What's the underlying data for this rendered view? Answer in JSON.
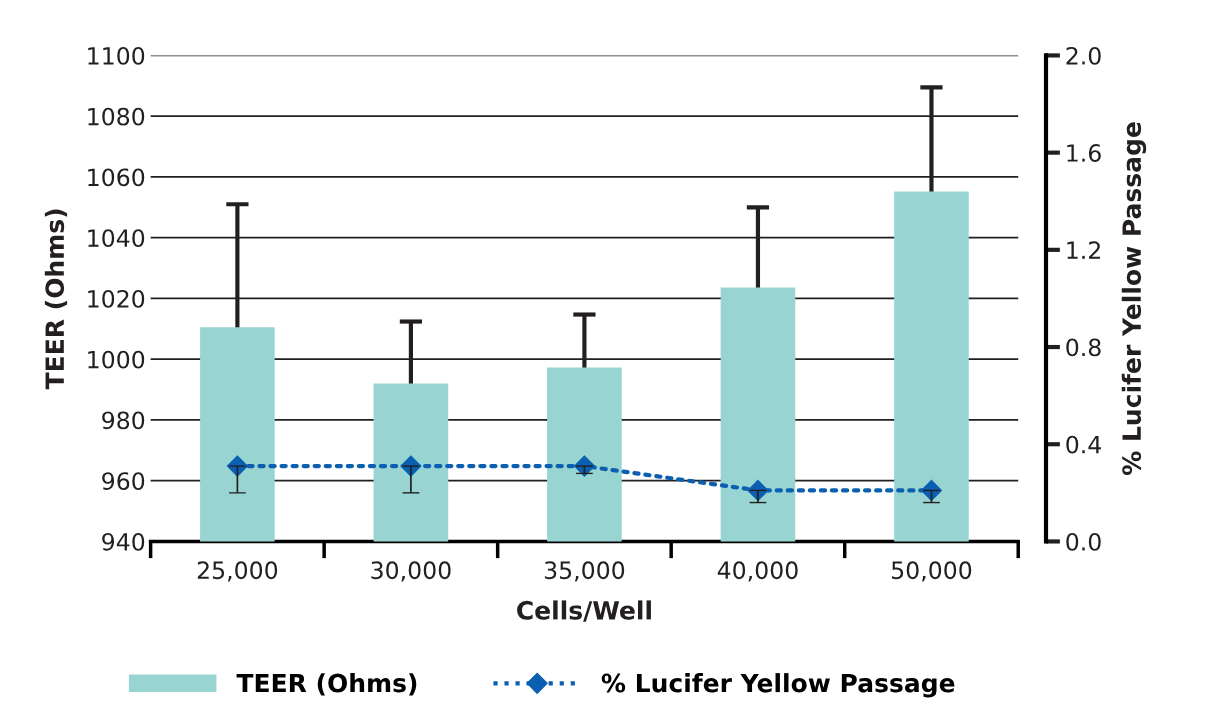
{
  "chart_data": {
    "type": "bar",
    "xlabel": "Cells/Well",
    "ylabel": "TEER (Ohms)",
    "y2label": "% Lucifer Yellow Passage",
    "categories": [
      "25,000",
      "30,000",
      "35,000",
      "40,000",
      "50,000"
    ],
    "series": [
      {
        "name": "TEER (Ohms)",
        "color": "#98d4d1",
        "values": [
          1010.5,
          992,
          997.3,
          1023.6,
          1055.2
        ],
        "errors": [
          40.5,
          20.4,
          17.4,
          26.4,
          34.3
        ]
      },
      {
        "name": "% Lucifer Yellow Passage",
        "type": "line",
        "axis": "y2",
        "color": "#0a5fb0",
        "values": [
          0.31,
          0.31,
          0.31,
          0.21,
          0.21
        ],
        "errors": [
          [
            0.2,
            0.31
          ],
          [
            0.2,
            0.31
          ],
          [
            0.28,
            0.31
          ],
          [
            0.16,
            0.21
          ],
          [
            0.16,
            0.21
          ]
        ],
        "marker": "diamond",
        "line_style": "dotted"
      }
    ],
    "ylim": [
      940,
      1100
    ],
    "yticks": [
      940,
      960,
      980,
      1000,
      1020,
      1040,
      1060,
      1080,
      1100
    ],
    "y2lim": [
      0,
      2.0
    ],
    "y2ticks": [
      {
        "value": 0,
        "label": "0.0"
      },
      {
        "value": 0.4,
        "label": "0.4"
      },
      {
        "value": 0.8,
        "label": "0.8"
      },
      {
        "value": 1.2,
        "label": "1.2"
      },
      {
        "value": 1.6,
        "label": "1.6"
      },
      {
        "value": 2.0,
        "label": "2.0"
      }
    ],
    "grid": "y",
    "legend": "bottom"
  }
}
